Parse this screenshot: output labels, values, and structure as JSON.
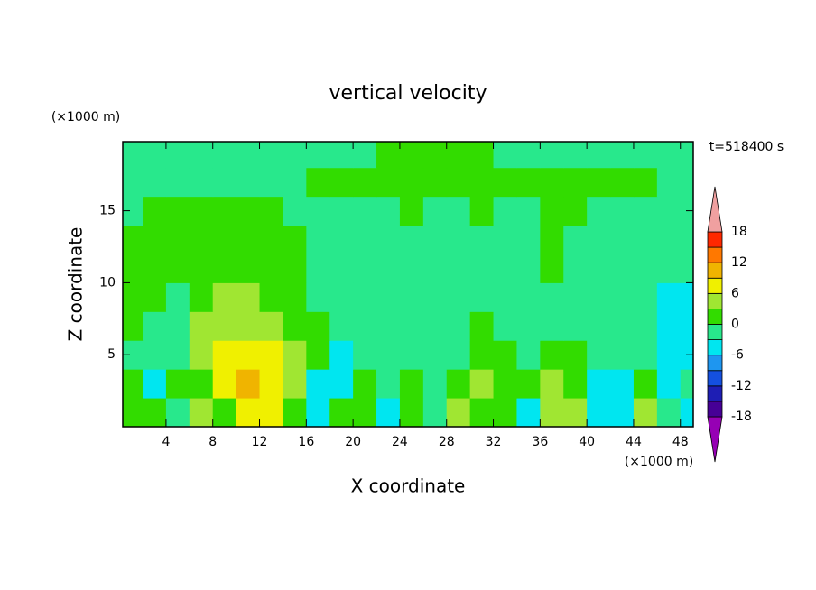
{
  "chart_data": {
    "type": "contour",
    "title": "vertical velocity",
    "xlabel": "X coordinate",
    "ylabel": "Z coordinate",
    "xunit": "(×1000 m)",
    "yunit": "(×1000 m)",
    "time_label": "t=518400 s",
    "xlim": [
      0.3,
      49.1
    ],
    "ylim": [
      0,
      19.8
    ],
    "xticks": [
      4,
      8,
      12,
      16,
      20,
      24,
      28,
      32,
      36,
      40,
      44,
      48
    ],
    "yticks": [
      5,
      10,
      15
    ],
    "x": [
      1,
      3,
      5,
      7,
      9,
      11,
      13,
      15,
      17,
      19,
      21,
      23,
      25,
      27,
      29,
      31,
      33,
      35,
      37,
      39,
      41,
      43,
      45,
      47,
      49
    ],
    "y": [
      1,
      3,
      5,
      7,
      9,
      11,
      13,
      15,
      17,
      19
    ],
    "z": [
      [
        1,
        1,
        -1,
        4,
        1,
        7,
        7,
        1,
        -4,
        1,
        1,
        -4,
        1,
        -1,
        4,
        1,
        1,
        -4,
        4,
        4,
        -4,
        -4,
        4,
        -1,
        -4
      ],
      [
        1,
        -4,
        1,
        1,
        7,
        10,
        7,
        4,
        -4,
        -4,
        1,
        -1,
        1,
        -1,
        1,
        4,
        1,
        1,
        4,
        1,
        -4,
        -4,
        1,
        -4,
        -1
      ],
      [
        -1,
        -1,
        -1,
        4,
        7,
        7,
        7,
        4,
        1,
        -4,
        -1,
        -1,
        -1,
        -1,
        -1,
        1,
        1,
        -1,
        1,
        1,
        -1,
        -1,
        -1,
        -4,
        -4
      ],
      [
        1,
        -1,
        -1,
        4,
        4,
        4,
        4,
        1,
        1,
        -1,
        -1,
        -1,
        -1,
        -1,
        -1,
        1,
        -1,
        -1,
        -1,
        -1,
        -1,
        -1,
        -1,
        -4,
        -4
      ],
      [
        1,
        1,
        -1,
        1,
        4,
        4,
        1,
        1,
        -1,
        -1,
        -1,
        -1,
        -1,
        -1,
        -1,
        -1,
        -1,
        -1,
        -1,
        -1,
        -1,
        -1,
        -1,
        -4,
        -4
      ],
      [
        1,
        1,
        1,
        1,
        1,
        1,
        1,
        1,
        -1,
        -1,
        -1,
        -1,
        -1,
        -1,
        -1,
        -1,
        -1,
        -1,
        1,
        -1,
        -1,
        -1,
        -1,
        -1,
        -1
      ],
      [
        1,
        1,
        1,
        1,
        1,
        1,
        1,
        1,
        -1,
        -1,
        -1,
        -1,
        -1,
        -1,
        -1,
        -1,
        -1,
        -1,
        1,
        -1,
        -1,
        -1,
        -1,
        -1,
        -1
      ],
      [
        -1,
        1,
        1,
        1,
        1,
        1,
        1,
        -1,
        -1,
        -1,
        -1,
        -1,
        1,
        -1,
        -1,
        1,
        -1,
        -1,
        1,
        1,
        -1,
        -1,
        -1,
        -1,
        -1
      ],
      [
        -1,
        -1,
        -1,
        -1,
        -1,
        -1,
        -1,
        -1,
        1,
        1,
        1,
        1,
        1,
        1,
        1,
        1,
        1,
        1,
        1,
        1,
        1,
        1,
        1,
        -1,
        -1
      ],
      [
        -1,
        -1,
        -1,
        -1,
        -1,
        -1,
        -1,
        -1,
        -1,
        -1,
        -1,
        1,
        1,
        1,
        1,
        1,
        -1,
        -1,
        -1,
        -1,
        -1,
        -1,
        -1,
        -1,
        -1
      ]
    ],
    "colorbar": {
      "levels": [
        -18,
        -15,
        -12,
        -9,
        -6,
        -3,
        0,
        3,
        6,
        9,
        12,
        15,
        18
      ],
      "colors": [
        "#9600b4",
        "#460096",
        "#1e1eb4",
        "#1450e0",
        "#1e96f0",
        "#00e6f0",
        "#28e88c",
        "#32dc00",
        "#a0e632",
        "#f0f000",
        "#f0b400",
        "#ff7800",
        "#ff2800",
        "#f0a0a0"
      ],
      "ticks": [
        -18,
        -12,
        -6,
        0,
        6,
        12,
        18
      ]
    }
  }
}
